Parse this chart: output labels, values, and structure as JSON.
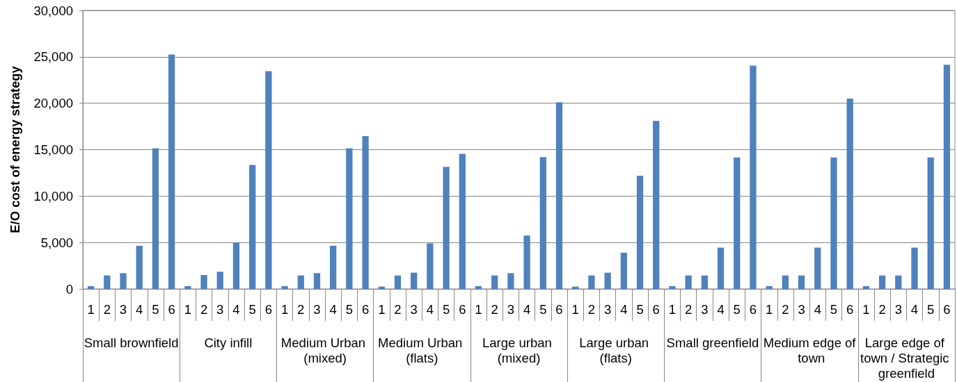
{
  "chart_data": {
    "type": "bar",
    "ylabel": "E/O cost of energy strategy",
    "categories": [
      "1",
      "2",
      "3",
      "4",
      "5",
      "6",
      "1",
      "2",
      "3",
      "4",
      "5",
      "6",
      "1",
      "2",
      "3",
      "4",
      "5",
      "6",
      "1",
      "2",
      "3",
      "4",
      "5",
      "6",
      "1",
      "2",
      "3",
      "4",
      "5",
      "6",
      "1",
      "2",
      "3",
      "4",
      "5",
      "6",
      "1",
      "2",
      "3",
      "4",
      "5",
      "6",
      "1",
      "2",
      "3",
      "4",
      "5",
      "6",
      "1",
      "2",
      "3",
      "4",
      "5",
      "6"
    ],
    "values": [
      300,
      1450,
      1700,
      4650,
      15150,
      25250,
      300,
      1500,
      1850,
      5000,
      13350,
      23450,
      300,
      1450,
      1700,
      4650,
      15150,
      16450,
      250,
      1450,
      1750,
      4900,
      13150,
      14550,
      300,
      1450,
      1700,
      5750,
      14200,
      20100,
      250,
      1450,
      1750,
      3900,
      12200,
      18100,
      300,
      1450,
      1450,
      4450,
      14150,
      24050,
      300,
      1450,
      1450,
      4450,
      14150,
      20500,
      300,
      1450,
      1450,
      4450,
      14150,
      24150
    ],
    "color": "#4f81bd",
    "ylim": [
      0,
      30000
    ],
    "yticks": [
      0,
      {
        "value": 5000,
        "label": "5,000"
      },
      {
        "value": 10000,
        "label": "10,000"
      },
      {
        "value": 15000,
        "label": "15,000"
      },
      {
        "value": 20000,
        "label": "20,000"
      },
      {
        "value": 25000,
        "label": "25,000"
      },
      {
        "value": 30000,
        "label": "30,000"
      }
    ],
    "grid": "y",
    "annotations": [
      "Small brownfield",
      "City infill",
      "Medium Urban (mixed)",
      "Medium Urban (flats)",
      "Large urban (mixed)",
      "Large urban (flats)",
      "Small greenfield",
      "Medium edge of town",
      "Large edge of town / Strategic greenfield"
    ]
  }
}
